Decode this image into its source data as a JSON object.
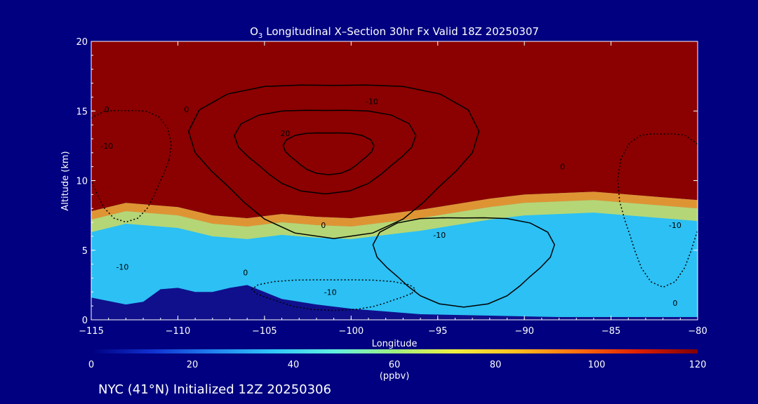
{
  "chart_data": {
    "type": "heatmap",
    "title_main": "Longitudinal X–Section 30hr  Fx Valid 18Z 20250307",
    "title_species": "O",
    "title_subscript": "3",
    "xlabel": "Longitude",
    "ylabel": "Altitude (km)",
    "xlim": [
      -115,
      -80
    ],
    "ylim": [
      0,
      20
    ],
    "x_ticks": [
      -115,
      -110,
      -105,
      -100,
      -95,
      -90,
      -85,
      -80
    ],
    "x_tick_labels": [
      "−115",
      "−110",
      "−105",
      "−100",
      "−95",
      "−90",
      "−85",
      "−80"
    ],
    "y_ticks": [
      0,
      5,
      10,
      15,
      20
    ],
    "y_tick_labels": [
      "0",
      "5",
      "10",
      "15",
      "20"
    ],
    "colorbar": {
      "min": 0,
      "max": 120,
      "ticks": [
        0,
        20,
        40,
        60,
        80,
        100,
        120
      ],
      "tick_labels": [
        "0",
        "20",
        "40",
        "60",
        "80",
        "100",
        "120"
      ],
      "unit": "(ppbv)",
      "colors": [
        "#000080",
        "#1030d0",
        "#2080f0",
        "#30c8f8",
        "#60f0e0",
        "#a0f080",
        "#f0f040",
        "#ffc020",
        "#ff7010",
        "#e02000",
        "#800000"
      ]
    },
    "tropopause_altitude_km": {
      "lon": [
        -115,
        -113,
        -110,
        -108,
        -106,
        -104,
        -102,
        -100,
        -98,
        -96,
        -94,
        -92,
        -90,
        -88,
        -86,
        -84,
        -82,
        -80
      ],
      "alt": [
        7.8,
        8.4,
        8.1,
        7.5,
        7.3,
        7.6,
        7.4,
        7.3,
        7.6,
        7.9,
        8.3,
        8.7,
        9.0,
        9.1,
        9.2,
        9.0,
        8.8,
        8.6
      ]
    },
    "terrain_altitude_km": {
      "lon": [
        -115,
        -113,
        -112,
        -111,
        -110,
        -109,
        -108,
        -107,
        -106,
        -105,
        -104,
        -102,
        -100,
        -96,
        -92,
        -88,
        -84,
        -80
      ],
      "alt": [
        1.6,
        1.1,
        1.3,
        2.2,
        2.3,
        2.0,
        2.0,
        2.3,
        2.5,
        2.0,
        1.5,
        1.1,
        0.8,
        0.4,
        0.3,
        0.2,
        0.2,
        0.2
      ]
    },
    "contour_labels": [
      {
        "text": "0",
        "lon": -114.1,
        "alt": 14.9
      },
      {
        "text": "-10",
        "lon": -114.1,
        "alt": 12.3
      },
      {
        "text": "0",
        "lon": -109.5,
        "alt": 14.9
      },
      {
        "text": "-10",
        "lon": -98.8,
        "alt": 15.5
      },
      {
        "text": "20",
        "lon": -103.8,
        "alt": 13.2
      },
      {
        "text": "0",
        "lon": -87.8,
        "alt": 10.8
      },
      {
        "text": "-10",
        "lon": -81.3,
        "alt": 6.6
      },
      {
        "text": "0",
        "lon": -101.6,
        "alt": 6.6
      },
      {
        "text": "-10",
        "lon": -94.9,
        "alt": 5.9
      },
      {
        "text": "-10",
        "lon": -113.2,
        "alt": 3.6
      },
      {
        "text": "0",
        "lon": -106.1,
        "alt": 3.2
      },
      {
        "text": "-10",
        "lon": -101.2,
        "alt": 1.8
      },
      {
        "text": "0",
        "lon": -81.3,
        "alt": 1.0
      }
    ]
  },
  "footer": "NYC (41°N) Initialized 12Z 20250306"
}
